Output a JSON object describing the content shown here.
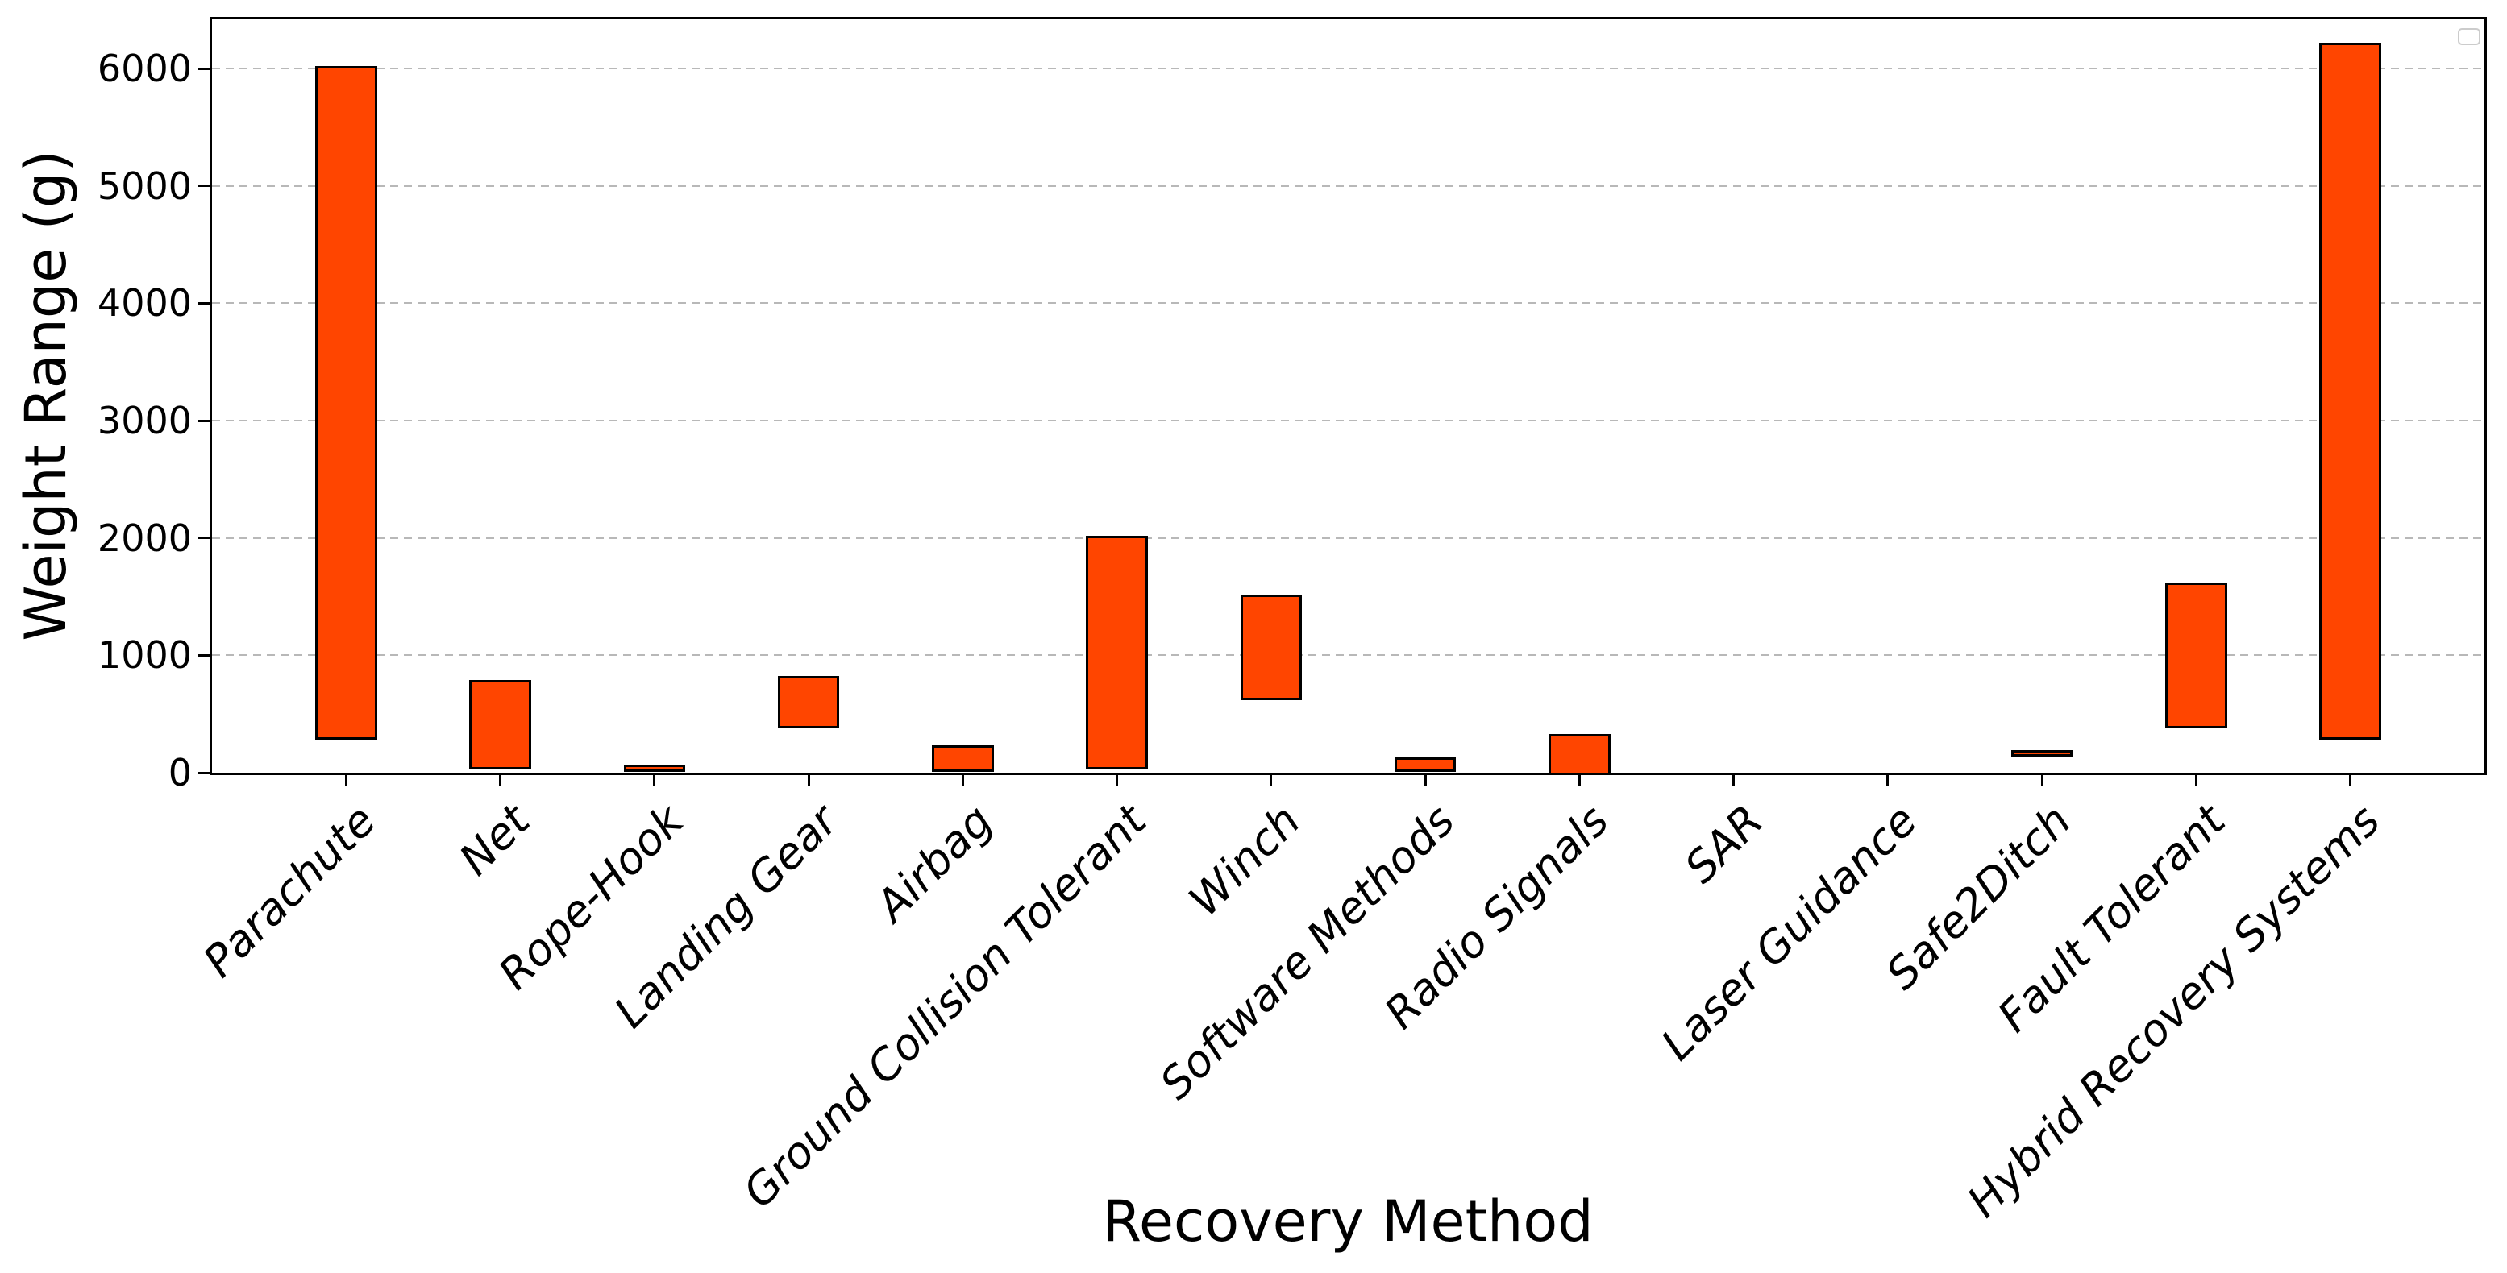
{
  "chart_data": {
    "type": "bar",
    "subtype": "floating-range-bars",
    "title": "",
    "xlabel": "Recovery Method",
    "ylabel": "Weight Range (g)",
    "categories": [
      "Parachute",
      "Net",
      "Rope-Hook",
      "Landing Gear",
      "Airbag",
      "Ground Collision Tolerant",
      "Winch",
      "Software Methods",
      "Radio Signals",
      "SAR",
      "Laser Guidance",
      "Safe2Ditch",
      "Fault Tolerant",
      "Hybrid Recovery Systems"
    ],
    "series": [
      {
        "name": "Weight Range (g)",
        "ranges": [
          [
            300,
            6000
          ],
          [
            50,
            770
          ],
          [
            25,
            45
          ],
          [
            400,
            800
          ],
          [
            25,
            210
          ],
          [
            50,
            2000
          ],
          [
            640,
            1500
          ],
          [
            25,
            110
          ],
          [
            0,
            310
          ],
          [
            0,
            0
          ],
          [
            0,
            0
          ],
          [
            155,
            175
          ],
          [
            400,
            1600
          ],
          [
            300,
            6200
          ]
        ]
      }
    ],
    "yticks": [
      0,
      1000,
      2000,
      3000,
      4000,
      5000,
      6000
    ],
    "ylim": [
      0,
      6420
    ],
    "xlim": [
      -0.87,
      13.87
    ],
    "bar_width_units": 0.4,
    "grid": {
      "axis": "y",
      "style": "dashed",
      "on": true
    },
    "legend": {
      "visible": true,
      "entries": [],
      "position": "upper right"
    },
    "colors": {
      "bar_fill": "#FF4500",
      "bar_edge": "#000000",
      "gridline": "#b8b8b8",
      "spine": "#000000",
      "text": "#000000",
      "background": "#ffffff",
      "legend_border": "#cccccc"
    }
  }
}
